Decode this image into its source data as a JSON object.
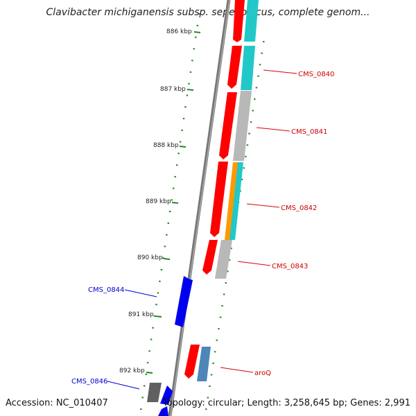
{
  "title": "Clavibacter michiganensis subsp. sepedonicus, complete genom...",
  "accession": "Accession: NC_010407",
  "stats": "Topology: circular; Length: 3,258,645 bp; Genes: 2,991",
  "scale_ticks": [
    "886 kbp",
    "887 kbp",
    "888 kbp",
    "889 kbp",
    "890 kbp",
    "891 kbp",
    "892 kbp"
  ],
  "gene_labels_forward": [
    "CMS_0840",
    "CMS_0841",
    "CMS_0842",
    "CMS_0843",
    "aroQ"
  ],
  "gene_labels_reverse": [
    "CMS_0844",
    "CMS_0846"
  ],
  "colors": {
    "forward": "#ff0000",
    "reverse": "#0000ff",
    "cyan": "#22c8c8",
    "gray": "#b0b0b0",
    "orange": "#ff9900",
    "steelblue": "#4f86b8",
    "dark": "#666666",
    "tick": "#228822"
  }
}
